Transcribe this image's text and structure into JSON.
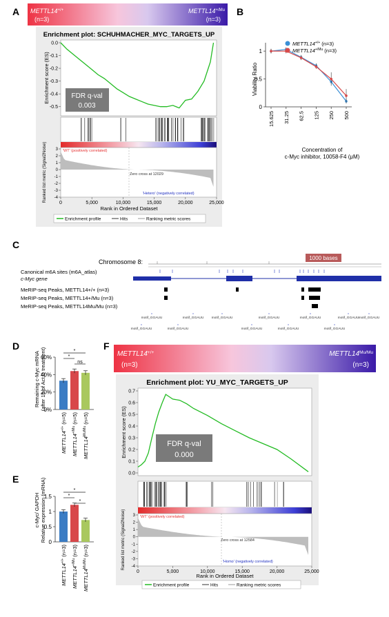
{
  "panel_labels": {
    "A": "A",
    "B": "B",
    "C": "C",
    "D": "D",
    "E": "E",
    "F": "F"
  },
  "chart_data": [
    {
      "id": "A",
      "type": "line",
      "banner_left": "METTL14",
      "banner_left_sup": "+/+",
      "banner_left_n": "(n=3)",
      "banner_right": "METTL14",
      "banner_right_sup": "+/Mu",
      "banner_right_n": "(n=3)",
      "title": "Enrichment plot: SCHUHMACHER_MYC_TARGETS_UP",
      "ylabel": "Enrichment score (ES)",
      "ylim": [
        -0.55,
        0.0
      ],
      "yticks": [
        "0.0",
        "-0.1",
        "-0.2",
        "-0.3",
        "-0.4",
        "-0.5"
      ],
      "fdr_label": "FDR q-val",
      "fdr_value": "0.003",
      "x": [
        0,
        1000,
        2000,
        3000,
        4000,
        5000,
        6000,
        7000,
        8000,
        9000,
        10000,
        11000,
        12000,
        13000,
        14000,
        15000,
        16000,
        17000,
        18000,
        19000,
        20000,
        21000,
        22000,
        23000,
        24000,
        24500
      ],
      "y": [
        0,
        -0.05,
        -0.09,
        -0.13,
        -0.17,
        -0.21,
        -0.25,
        -0.28,
        -0.32,
        -0.36,
        -0.39,
        -0.42,
        -0.44,
        -0.46,
        -0.48,
        -0.49,
        -0.5,
        -0.5,
        -0.49,
        -0.51,
        -0.45,
        -0.44,
        -0.38,
        -0.3,
        -0.15,
        0
      ],
      "metric_ylabel": "Ranked list metric (Signal2Noise)",
      "metric_yticks": [
        "3",
        "2",
        "1",
        "0",
        "-1",
        "-2",
        "-3",
        "-4"
      ],
      "wt_label": "'WT' (positively correlated)",
      "zero_cross": "Zero cross at 12029",
      "neg_label": "'Hetero' (negatively correlated)",
      "xlabel": "Rank in Ordered Dataset",
      "xticks": [
        "0",
        "5,000",
        "10,000",
        "15,000",
        "20,000",
        "25,000"
      ],
      "legend": [
        "Enrichment profile",
        "Hits",
        "Ranking metric scores"
      ]
    },
    {
      "id": "B",
      "type": "line",
      "ylabel": "Viability Ratio",
      "xlabel_line1": "Concentration of",
      "xlabel_line2": "c-Myc inhibitor, 10058-F4 (μM)",
      "categories": [
        "15.625",
        "31.25",
        "62.5",
        "125",
        "250",
        "500"
      ],
      "yticks": [
        "0",
        "0.5",
        "1"
      ],
      "ylim": [
        0,
        1.15
      ],
      "series": [
        {
          "name": "METTL14",
          "sup": "+/+",
          "n": " (n=3)",
          "values": [
            1.0,
            1.03,
            0.89,
            0.74,
            0.45,
            0.1
          ]
        },
        {
          "name": "METTL14",
          "sup": "+/Mu",
          "n": " (n=3)",
          "values": [
            1.0,
            1.0,
            0.88,
            0.72,
            0.5,
            0.2
          ]
        }
      ]
    },
    {
      "id": "D",
      "type": "bar",
      "ylabel_line1": "Remaining c-Myc mRNA",
      "ylabel_line2": "(after 1h of Act.D treatment)",
      "yticks": [
        "0%",
        "20%",
        "40%",
        "60%"
      ],
      "ylim": [
        0,
        60
      ],
      "values": [
        33,
        44,
        42
      ],
      "categories": [
        {
          "name": "METTL14",
          "sup": "+/+",
          "n": " (n=5)"
        },
        {
          "name": "METTL14",
          "sup": "+/Mu",
          "n": " (n=5)"
        },
        {
          "name": "METTL14",
          "sup": "Mu/Mu",
          "n": " (n=5)"
        }
      ],
      "sig": [
        "*",
        "*",
        "ns"
      ]
    },
    {
      "id": "E",
      "type": "bar",
      "ylabel_line1": "c-Myc/ GAPDH",
      "ylabel_line2": "Relative expression (mRNA)",
      "yticks": [
        "0",
        "0.5",
        "1",
        "1.5"
      ],
      "ylim": [
        0,
        1.5
      ],
      "values": [
        1.0,
        1.22,
        0.72
      ],
      "categories": [
        {
          "name": "METTL14",
          "sup": "+/+",
          "n": " (n=3)"
        },
        {
          "name": "METTL14",
          "sup": "+/Mu",
          "n": " (n=3)"
        },
        {
          "name": "METTL14",
          "sup": "Mu/Mu",
          "n": " (n=3)"
        }
      ],
      "sig": [
        "*",
        "*",
        "*"
      ]
    },
    {
      "id": "F",
      "type": "line",
      "banner_left": "METTL14",
      "banner_left_sup": "+/+",
      "banner_left_n": "(n=3)",
      "banner_right": "METTL14",
      "banner_right_sup": "Mu/Mu",
      "banner_right_n": "(n=3)",
      "title": "Enrichment plot: YU_MYC_TARGETS_UP",
      "ylabel": "Enrichment score (ES)",
      "ylim": [
        0.0,
        0.7
      ],
      "yticks": [
        "0.7",
        "0.6",
        "0.5",
        "0.4",
        "0.3",
        "0.2",
        "0.1",
        "0.0"
      ],
      "fdr_label": "FDR q-val",
      "fdr_value": "0.000",
      "x": [
        0,
        500,
        1000,
        1500,
        2000,
        2500,
        3000,
        3500,
        4000,
        4500,
        5000,
        6000,
        7000,
        8000,
        10000,
        12000,
        14000,
        16000,
        18000,
        20000,
        22000,
        24500
      ],
      "y": [
        0.05,
        0.07,
        0.1,
        0.17,
        0.3,
        0.42,
        0.52,
        0.6,
        0.67,
        0.65,
        0.63,
        0.62,
        0.59,
        0.55,
        0.49,
        0.42,
        0.36,
        0.3,
        0.25,
        0.2,
        0.12,
        0.01
      ],
      "metric_ylabel": "Ranked list metric (Signal2Noise)",
      "metric_yticks": [
        "3",
        "2",
        "1",
        "0",
        "-1",
        "-2",
        "-3",
        "-4"
      ],
      "wt_label": "'WT' (positively correlated)",
      "zero_cross": "Zero cross at 12584",
      "neg_label": "'Homo' (negatively correlated)",
      "xlabel": "Rank in Ordered Dataset",
      "xticks": [
        "0",
        "5,000",
        "10,000",
        "15,000",
        "20,000",
        "25,000"
      ],
      "legend": [
        "Enrichment profile",
        "Hits",
        "Ranking metric scores"
      ]
    }
  ],
  "panelC": {
    "chromosome": "Chromosome 8:",
    "scale": "1000 bases",
    "tracks": [
      "Canonical m6A sites (m6A_atlas)",
      "c-Myc gene",
      "MeRIP-seq Peaks, METTL14+/+ (n=3)",
      "MeRIP-seq Peaks, METTL14+/Mu (n=3)",
      "MeRIP-seq Peaks, METTL14Mu/Mu (n=3)"
    ],
    "motif": "motif_GGAUU"
  }
}
